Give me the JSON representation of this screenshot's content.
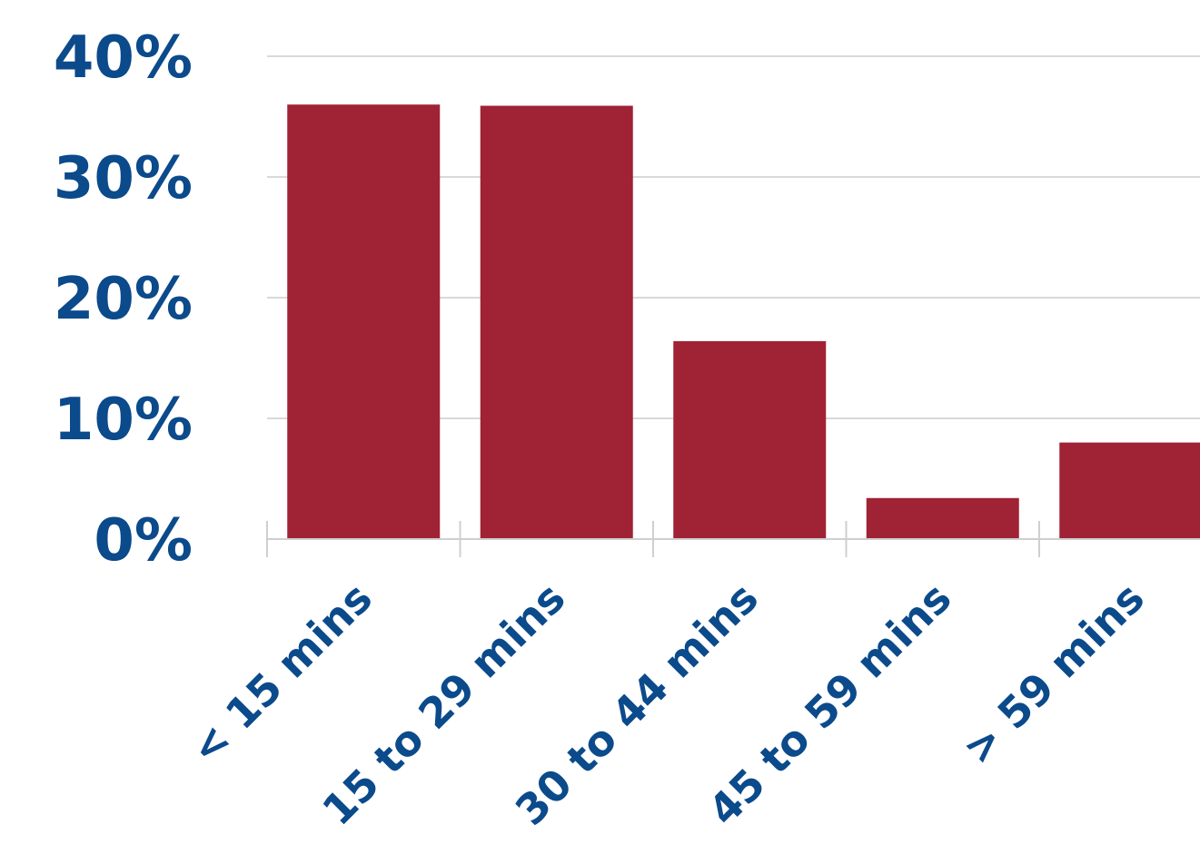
{
  "chart_data": {
    "type": "bar",
    "title": "",
    "xlabel": "",
    "ylabel": "",
    "categories": [
      "< 15 mins",
      "15 to 29 mins",
      "30 to 44 mins",
      "45 to 59 mins",
      "> 59 mins"
    ],
    "values": [
      36.0,
      35.9,
      16.4,
      3.4,
      8.0
    ],
    "value_unit": "%",
    "ylim": [
      0,
      40
    ],
    "y_ticks": [
      "0%",
      "10%",
      "20%",
      "30%",
      "40%"
    ],
    "grid": true,
    "legend": "none",
    "colors": {
      "bar": "#a02235",
      "tick_text": "#0b4a8b",
      "grid": "#d9d9d9"
    }
  }
}
